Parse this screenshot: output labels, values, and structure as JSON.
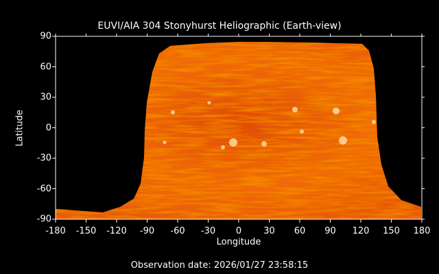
{
  "title": "EUVI/AIA 304 Stonyhurst Heliographic (Earth-view)",
  "x_axis": {
    "label": "Longitude",
    "ticks": [
      "-180",
      "-150",
      "-120",
      "-90",
      "-60",
      "-30",
      "0",
      "30",
      "60",
      "90",
      "120",
      "150",
      "180"
    ],
    "range": [
      -180,
      180
    ]
  },
  "y_axis": {
    "label": "Latitude",
    "ticks": [
      "90",
      "60",
      "30",
      "0",
      "-30",
      "-60",
      "-90"
    ],
    "range": [
      -90,
      90
    ]
  },
  "observation": "Observation date: 2026/01/27 23:58:15",
  "colors": {
    "background": "#000000",
    "sun_base": "#e85a08",
    "sun_dark": "#b82800",
    "sun_bright": "#ffd8a0"
  }
}
